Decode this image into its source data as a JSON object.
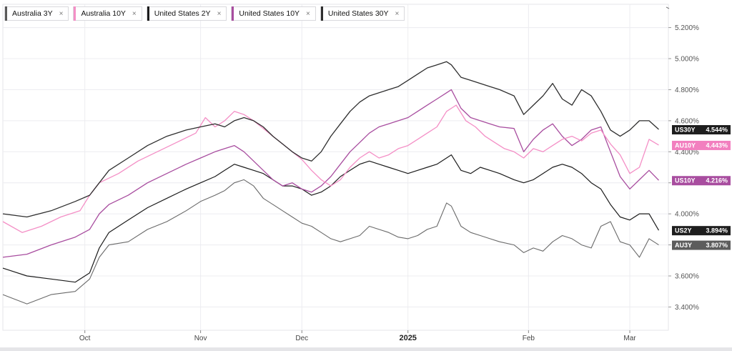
{
  "legend": [
    {
      "label": "Australia 3Y",
      "color": "#5a5a5a",
      "close": "×"
    },
    {
      "label": "Australia 10Y",
      "color": "#f48fc6",
      "close": "×"
    },
    {
      "label": "United States 2Y",
      "color": "#1c1c1c",
      "close": "×"
    },
    {
      "label": "United States 10Y",
      "color": "#a84d9f",
      "close": "×"
    },
    {
      "label": "United States 30Y",
      "color": "#2e2e2e",
      "close": "×"
    }
  ],
  "chart_data": {
    "type": "line",
    "y_ticks": [
      "5.200%",
      "5.000%",
      "4.800%",
      "4.600%",
      "4.400%",
      "4.200%",
      "4.000%",
      "3.800%",
      "3.600%",
      "3.400%"
    ],
    "y_tick_values": [
      5.2,
      5.0,
      4.8,
      4.6,
      4.4,
      4.2,
      4.0,
      3.8,
      3.6,
      3.4
    ],
    "ylim": [
      3.25,
      5.35
    ],
    "xlim": [
      0,
      138
    ],
    "x_ticks": [
      {
        "label": "Oct",
        "x": 17,
        "bold": false
      },
      {
        "label": "Nov",
        "x": 41,
        "bold": false
      },
      {
        "label": "Dec",
        "x": 62,
        "bold": false
      },
      {
        "label": "2025",
        "x": 84,
        "bold": true
      },
      {
        "label": "Feb",
        "x": 109,
        "bold": false
      },
      {
        "label": "Mar",
        "x": 130,
        "bold": false
      }
    ],
    "grid": true,
    "legend_position": "top-left",
    "series": [
      {
        "key": "au3y",
        "name": "Australia 3Y",
        "color": "#6a6a6a",
        "width": 1.1,
        "x": [
          0,
          5,
          10,
          15,
          18,
          20,
          22,
          26,
          30,
          34,
          38,
          41,
          44,
          46,
          48,
          50,
          52,
          54,
          56,
          58,
          60,
          62,
          64,
          66,
          68,
          70,
          72,
          74,
          76,
          78,
          80,
          82,
          84,
          86,
          88,
          90,
          92,
          93,
          95,
          97,
          99,
          101,
          103,
          106,
          108,
          110,
          112,
          114,
          116,
          118,
          120,
          122,
          124,
          126,
          128,
          130,
          132,
          134,
          136
        ],
        "values": [
          3.48,
          3.42,
          3.48,
          3.5,
          3.58,
          3.72,
          3.8,
          3.82,
          3.9,
          3.95,
          4.02,
          4.08,
          4.12,
          4.15,
          4.2,
          4.22,
          4.18,
          4.1,
          4.06,
          4.02,
          3.98,
          3.94,
          3.92,
          3.88,
          3.84,
          3.82,
          3.84,
          3.86,
          3.92,
          3.9,
          3.88,
          3.85,
          3.84,
          3.86,
          3.9,
          3.92,
          4.07,
          4.05,
          3.92,
          3.88,
          3.86,
          3.84,
          3.82,
          3.8,
          3.75,
          3.78,
          3.76,
          3.82,
          3.86,
          3.84,
          3.8,
          3.78,
          3.92,
          3.95,
          3.82,
          3.8,
          3.72,
          3.84,
          3.8
        ]
      },
      {
        "key": "au10y",
        "name": "Australia 10Y",
        "color": "#f48fc6",
        "width": 1.3,
        "x": [
          0,
          4,
          8,
          12,
          16,
          18,
          20,
          24,
          28,
          32,
          36,
          40,
          42,
          44,
          46,
          48,
          50,
          52,
          54,
          56,
          58,
          60,
          62,
          64,
          66,
          68,
          70,
          72,
          74,
          76,
          78,
          80,
          82,
          84,
          86,
          88,
          90,
          92,
          94,
          96,
          98,
          100,
          102,
          104,
          106,
          108,
          110,
          112,
          114,
          116,
          118,
          120,
          122,
          124,
          126,
          128,
          130,
          132,
          134,
          136
        ],
        "values": [
          3.95,
          3.88,
          3.92,
          3.98,
          4.02,
          4.12,
          4.2,
          4.26,
          4.34,
          4.4,
          4.46,
          4.52,
          4.62,
          4.56,
          4.6,
          4.66,
          4.64,
          4.6,
          4.55,
          4.5,
          4.45,
          4.4,
          4.35,
          4.28,
          4.22,
          4.18,
          4.22,
          4.3,
          4.36,
          4.4,
          4.36,
          4.38,
          4.42,
          4.44,
          4.48,
          4.52,
          4.56,
          4.66,
          4.7,
          4.6,
          4.56,
          4.5,
          4.46,
          4.42,
          4.4,
          4.36,
          4.42,
          4.4,
          4.44,
          4.48,
          4.5,
          4.47,
          4.52,
          4.54,
          4.45,
          4.38,
          4.26,
          4.3,
          4.48,
          4.443
        ]
      },
      {
        "key": "us10y",
        "name": "United States 10Y",
        "color": "#a84d9f",
        "width": 1.3,
        "x": [
          0,
          5,
          10,
          15,
          18,
          20,
          22,
          26,
          30,
          34,
          38,
          41,
          44,
          46,
          48,
          50,
          52,
          54,
          56,
          58,
          60,
          62,
          64,
          66,
          68,
          70,
          72,
          74,
          76,
          78,
          80,
          82,
          84,
          86,
          88,
          90,
          92,
          93,
          95,
          97,
          99,
          101,
          103,
          106,
          108,
          110,
          112,
          114,
          116,
          118,
          120,
          122,
          124,
          126,
          128,
          130,
          132,
          134,
          136
        ],
        "values": [
          3.72,
          3.74,
          3.8,
          3.85,
          3.9,
          4.0,
          4.06,
          4.12,
          4.2,
          4.26,
          4.32,
          4.36,
          4.4,
          4.42,
          4.44,
          4.4,
          4.34,
          4.28,
          4.22,
          4.18,
          4.2,
          4.16,
          4.14,
          4.18,
          4.24,
          4.32,
          4.4,
          4.46,
          4.52,
          4.56,
          4.58,
          4.6,
          4.62,
          4.66,
          4.7,
          4.74,
          4.78,
          4.8,
          4.68,
          4.62,
          4.6,
          4.58,
          4.56,
          4.55,
          4.4,
          4.48,
          4.54,
          4.58,
          4.5,
          4.44,
          4.48,
          4.54,
          4.56,
          4.4,
          4.24,
          4.16,
          4.22,
          4.28,
          4.216
        ]
      },
      {
        "key": "us2y",
        "name": "United States 2Y",
        "color": "#1c1c1c",
        "width": 1.2,
        "x": [
          0,
          5,
          10,
          15,
          18,
          20,
          22,
          26,
          30,
          34,
          38,
          41,
          44,
          46,
          48,
          50,
          52,
          54,
          56,
          58,
          60,
          62,
          64,
          66,
          68,
          70,
          72,
          74,
          76,
          78,
          80,
          82,
          84,
          86,
          88,
          90,
          92,
          93,
          95,
          97,
          99,
          101,
          103,
          106,
          108,
          110,
          112,
          114,
          116,
          118,
          120,
          122,
          124,
          126,
          128,
          130,
          132,
          134,
          136
        ],
        "values": [
          3.65,
          3.6,
          3.58,
          3.56,
          3.62,
          3.78,
          3.88,
          3.96,
          4.04,
          4.1,
          4.16,
          4.2,
          4.24,
          4.28,
          4.32,
          4.3,
          4.28,
          4.26,
          4.22,
          4.18,
          4.18,
          4.16,
          4.12,
          4.14,
          4.18,
          4.24,
          4.28,
          4.32,
          4.34,
          4.32,
          4.3,
          4.28,
          4.26,
          4.28,
          4.3,
          4.32,
          4.36,
          4.38,
          4.28,
          4.26,
          4.3,
          4.28,
          4.26,
          4.22,
          4.2,
          4.22,
          4.26,
          4.3,
          4.32,
          4.3,
          4.26,
          4.2,
          4.16,
          4.06,
          3.98,
          3.96,
          4.0,
          4.0,
          3.894
        ]
      },
      {
        "key": "us30y",
        "name": "United States 30Y",
        "color": "#2e2e2e",
        "width": 1.3,
        "x": [
          0,
          5,
          10,
          15,
          18,
          20,
          22,
          26,
          30,
          34,
          38,
          41,
          44,
          46,
          48,
          50,
          52,
          54,
          56,
          58,
          60,
          62,
          64,
          66,
          68,
          70,
          72,
          74,
          76,
          78,
          80,
          82,
          84,
          86,
          88,
          90,
          92,
          93,
          95,
          97,
          99,
          101,
          103,
          106,
          108,
          110,
          112,
          114,
          116,
          118,
          120,
          122,
          124,
          126,
          128,
          130,
          132,
          134,
          136
        ],
        "values": [
          4.0,
          3.98,
          4.02,
          4.08,
          4.12,
          4.2,
          4.28,
          4.36,
          4.44,
          4.5,
          4.54,
          4.56,
          4.58,
          4.56,
          4.6,
          4.62,
          4.6,
          4.56,
          4.5,
          4.45,
          4.4,
          4.36,
          4.34,
          4.4,
          4.5,
          4.58,
          4.66,
          4.72,
          4.76,
          4.78,
          4.8,
          4.82,
          4.86,
          4.9,
          4.94,
          4.96,
          4.98,
          4.96,
          4.88,
          4.86,
          4.84,
          4.82,
          4.8,
          4.76,
          4.64,
          4.7,
          4.76,
          4.84,
          4.74,
          4.7,
          4.8,
          4.76,
          4.66,
          4.54,
          4.5,
          4.54,
          4.6,
          4.6,
          4.544
        ]
      }
    ],
    "end_labels": [
      {
        "key": "us30y",
        "tag": "US30Y",
        "value": "4.544%",
        "bg": "#1e1e1e",
        "fg": "#ffffff"
      },
      {
        "key": "au10y",
        "tag": "AU10Y",
        "value": "4.443%",
        "bg": "#f27fbf",
        "fg": "#ffffff"
      },
      {
        "key": "us10y",
        "tag": "US10Y",
        "value": "4.216%",
        "bg": "#a84d9f",
        "fg": "#ffffff"
      },
      {
        "key": "us2y",
        "tag": "US2Y",
        "value": "3.894%",
        "bg": "#1e1e1e",
        "fg": "#ffffff"
      },
      {
        "key": "au3y",
        "tag": "AU3Y",
        "value": "3.807%",
        "bg": "#5c5c5c",
        "fg": "#ffffff"
      }
    ]
  }
}
